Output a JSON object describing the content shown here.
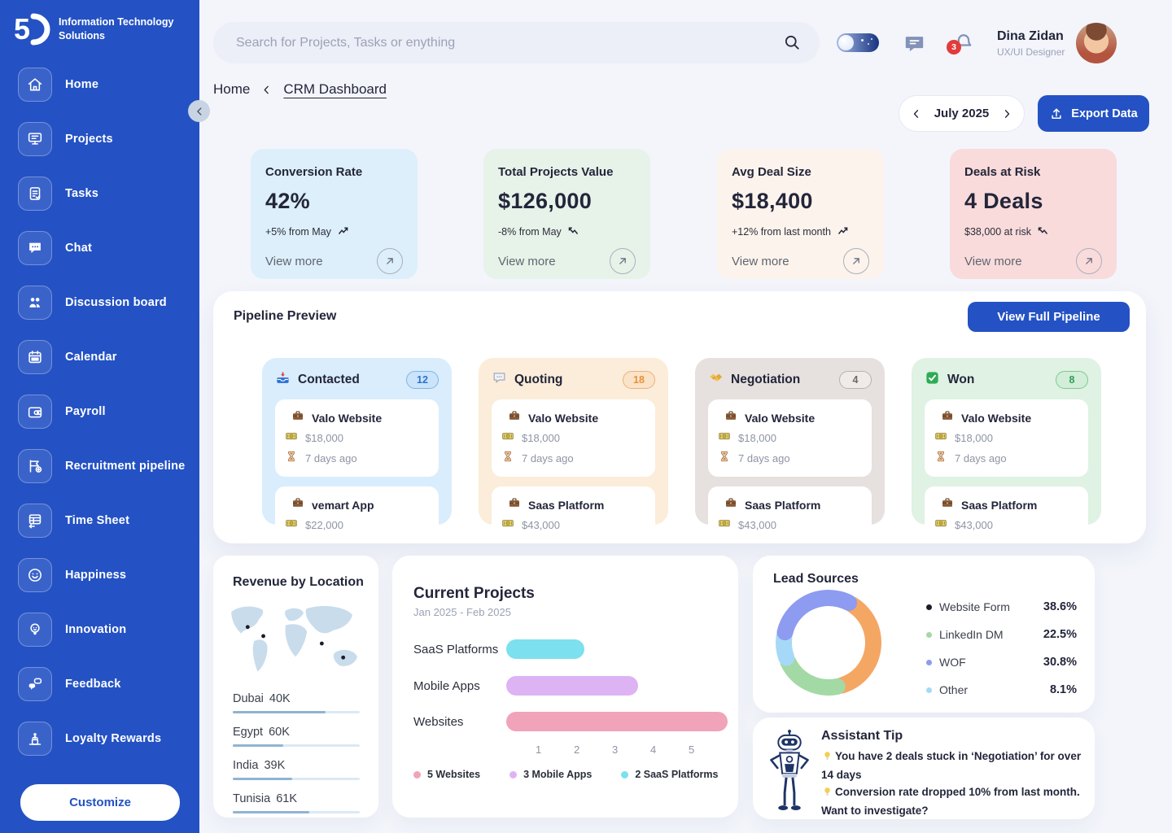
{
  "brand": {
    "line1": "Information Technology",
    "line2": "Solutions"
  },
  "sidebar": {
    "items": [
      {
        "label": "Home",
        "icon": "home"
      },
      {
        "label": "Projects",
        "icon": "projects"
      },
      {
        "label": "Tasks",
        "icon": "tasks"
      },
      {
        "label": "Chat",
        "icon": "chat"
      },
      {
        "label": "Discussion board",
        "icon": "discussion"
      },
      {
        "label": "Calendar",
        "icon": "calendar"
      },
      {
        "label": "Payroll",
        "icon": "payroll"
      },
      {
        "label": "Recruitment pipeline",
        "icon": "recruitment"
      },
      {
        "label": "Time Sheet",
        "icon": "timesheet"
      },
      {
        "label": "Happiness",
        "icon": "happiness"
      },
      {
        "label": "Innovation",
        "icon": "innovation"
      },
      {
        "label": "Feedback",
        "icon": "feedback"
      },
      {
        "label": "Loyalty Rewards",
        "icon": "loyalty"
      }
    ],
    "customize_label": "Customize"
  },
  "topbar": {
    "search_placeholder": "Search for Projects, Tasks or enything",
    "notification_count": "3",
    "user": {
      "name": "Dina Zidan",
      "role": "UX/UI Designer"
    }
  },
  "breadcrumb": {
    "root": "Home",
    "current": "CRM Dashboard"
  },
  "header": {
    "period": "July 2025",
    "export_label": "Export Data"
  },
  "stats": [
    {
      "title": "Conversion Rate",
      "value": "42%",
      "delta": "+5% from May",
      "trend": "up",
      "view_more": "View more",
      "bg": "#DDEFFA"
    },
    {
      "title": "Total Projects Value",
      "value": "$126,000",
      "delta": "-8% from May",
      "trend": "down",
      "view_more": "View more",
      "bg": "#E7F2E9"
    },
    {
      "title": "Avg Deal Size",
      "value": "$18,400",
      "delta": "+12% from last month",
      "trend": "up",
      "view_more": "View more",
      "bg": "#FCF3EC"
    },
    {
      "title": "Deals at Risk",
      "value": "4 Deals",
      "delta": "$38,000 at risk",
      "trend": "down",
      "view_more": "View more",
      "bg": "#F9DBDB"
    }
  ],
  "pipeline": {
    "title": "Pipeline Preview",
    "button_label": "View Full Pipeline",
    "stages": [
      {
        "name": "Contacted",
        "count": "12",
        "icon": "inbox",
        "bg": "#D9EDFC",
        "accent": "#7FB4E8",
        "pill_bg": "#CBE4FA",
        "pill_text": "#2C72D2",
        "deals": [
          {
            "name": "Valo Website",
            "value": "$18,000",
            "age": "7 days ago"
          },
          {
            "name": "vemart App",
            "value": "$22,000"
          }
        ]
      },
      {
        "name": "Quoting",
        "count": "18",
        "icon": "speech",
        "bg": "#FBEDD9",
        "accent": "#ECB27A",
        "pill_bg": "#FAE3C8",
        "pill_text": "#E8923C",
        "deals": [
          {
            "name": "Valo Website",
            "value": "$18,000",
            "age": "7 days ago"
          },
          {
            "name": "Saas Platform",
            "value": "$43,000"
          }
        ]
      },
      {
        "name": "Negotiation",
        "count": "4",
        "icon": "handshake",
        "bg": "#E6E1DE",
        "accent": "#B8B2AC",
        "pill_bg": "#EFEBE8",
        "pill_text": "#6E6861",
        "deals": [
          {
            "name": "Valo Website",
            "value": "$18,000",
            "age": "7 days ago"
          },
          {
            "name": "Saas Platform",
            "value": "$43,000"
          }
        ]
      },
      {
        "name": "Won",
        "count": "8",
        "icon": "won",
        "bg": "#DFF2E3",
        "accent": "#7FC895",
        "pill_bg": "#D2EDD8",
        "pill_text": "#2F9E54",
        "deals": [
          {
            "name": "Valo Website",
            "value": "$18,000",
            "age": "7 days ago"
          },
          {
            "name": "Saas Platform",
            "value": "$43,000"
          }
        ]
      }
    ]
  },
  "revenue": {
    "title": "Revenue by Location",
    "locations": [
      {
        "name": "Dubai",
        "value": "40K",
        "pct": 73
      },
      {
        "name": "Egypt",
        "value": "60K",
        "pct": 40
      },
      {
        "name": "India",
        "value": "39K",
        "pct": 47
      },
      {
        "name": "Tunisia",
        "value": "61K",
        "pct": 60
      }
    ]
  },
  "projects_chart": {
    "type": "bar",
    "title": "Current Projects",
    "subtitle": "Jan 2025 - Feb 2025",
    "categories": [
      "SaaS Platforms",
      "Mobile Apps",
      "Websites"
    ],
    "values": [
      2,
      3,
      5
    ],
    "bar_units": [
      2.05,
      3.45,
      5.78
    ],
    "colors": [
      "#7CE0EE",
      "#DEB3F4",
      "#F1A3BA"
    ],
    "ticks": [
      "1",
      "2",
      "3",
      "4",
      "5"
    ],
    "legend": [
      {
        "label": "5 Websites",
        "color": "#F1A3BA"
      },
      {
        "label": "3 Mobile Apps",
        "color": "#DEB3F4"
      },
      {
        "label": "2 SaaS Platforms",
        "color": "#7CE0EE"
      }
    ]
  },
  "lead_sources": {
    "type": "pie",
    "title": "Lead Sources",
    "sources": [
      {
        "label": "Website Form",
        "value": "38.6%",
        "pct": 38.6,
        "dot": "#1B1D29",
        "arc": "#F4A763"
      },
      {
        "label": "LinkedIn DM",
        "value": "22.5%",
        "pct": 22.5,
        "dot": "#A3D9A5",
        "arc": "#A3D9A5"
      },
      {
        "label": "WOF",
        "value": "30.8%",
        "pct": 30.8,
        "dot": "#8D9BF0",
        "arc": "#8D9BF0"
      },
      {
        "label": "Other",
        "value": "8.1%",
        "pct": 8.1,
        "dot": "#A6D9F7",
        "arc": "#A6D9F7"
      }
    ],
    "arc_order": [
      0,
      1,
      3,
      2
    ]
  },
  "assistant": {
    "title": "Assistant Tip",
    "tips": [
      "You have 2 deals stuck in ‘Negotiation’ for over 14 days",
      "Conversion rate dropped 10% from last month. Want to investigate?"
    ]
  },
  "colors": {
    "sidebar": "#2452C4",
    "accent_blue": "#2452C4",
    "badge_red": "#E23B3B",
    "page_bg": "#F3F5FB"
  }
}
